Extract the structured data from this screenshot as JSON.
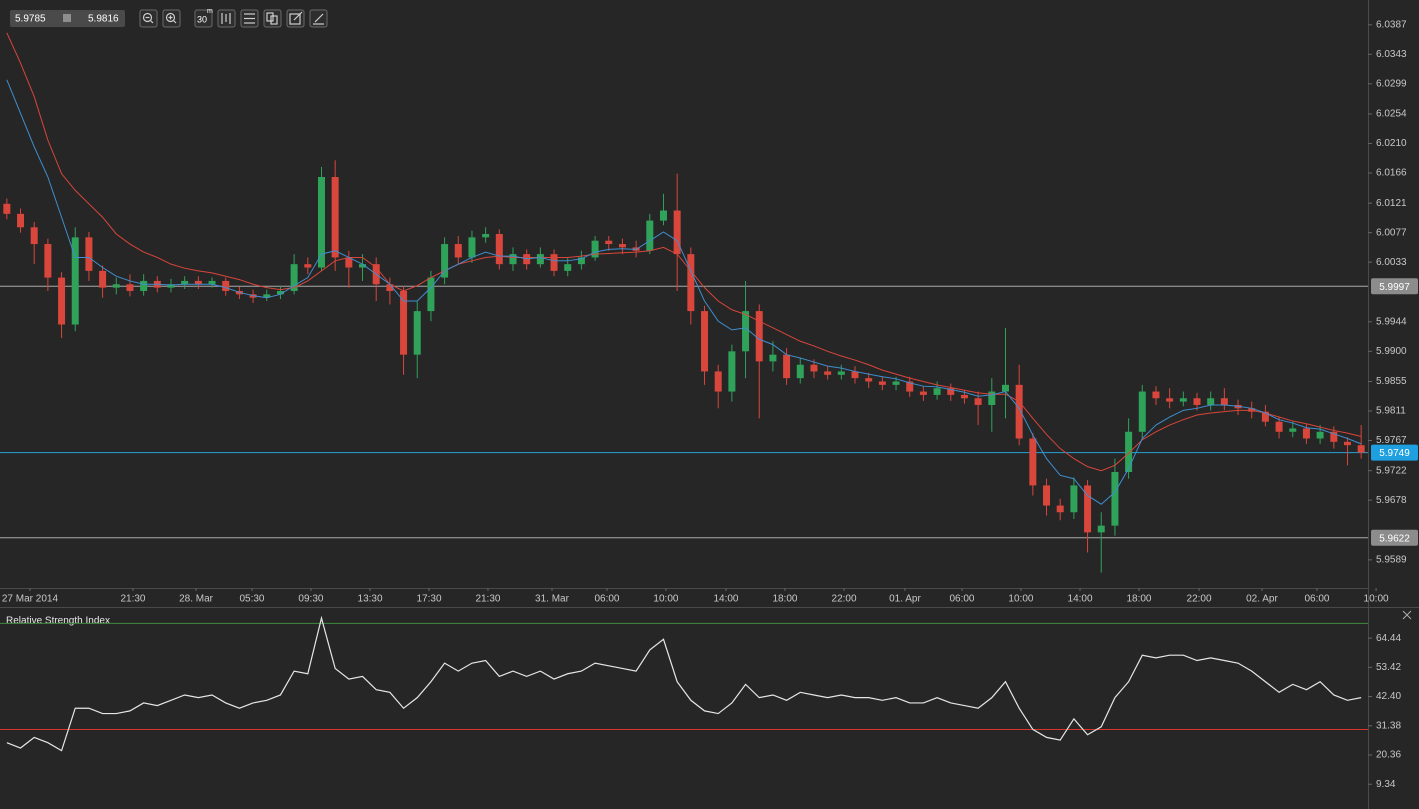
{
  "toolbar": {
    "bid": "5.9785",
    "ask": "5.9816",
    "timeframe": "30",
    "unit": "m"
  },
  "chart_data": [
    {
      "type": "candlestick",
      "up_color": "#2fa35a",
      "down_color": "#d9463b",
      "open": [
        6.012,
        6.0105,
        6.0085,
        6.006,
        6.001,
        5.994,
        6.007,
        6.002,
        5.9995,
        6.0,
        5.999,
        6.0005,
        5.9995,
        6.0,
        6.0005,
        6.0,
        6.0005,
        5.999,
        5.9985,
        5.998,
        5.9985,
        5.999,
        6.003,
        6.0025,
        6.016,
        6.004,
        6.0025,
        6.003,
        6.0,
        5.999,
        5.9895,
        5.996,
        6.001,
        6.006,
        6.004,
        6.007,
        6.0075,
        6.003,
        6.0045,
        6.003,
        6.0045,
        6.002,
        6.003,
        6.004,
        6.0065,
        6.006,
        6.0055,
        6.005,
        6.0095,
        6.011,
        6.0045,
        5.996,
        5.987,
        5.984,
        5.99,
        5.996,
        5.9885,
        5.9895,
        5.986,
        5.988,
        5.987,
        5.9865,
        5.987,
        5.986,
        5.9855,
        5.985,
        5.9855,
        5.984,
        5.9835,
        5.9845,
        5.9835,
        5.983,
        5.982,
        5.984,
        5.985,
        5.977,
        5.97,
        5.967,
        5.966,
        5.97,
        5.963,
        5.964,
        5.972,
        5.978,
        5.984,
        5.983,
        5.9825,
        5.983,
        5.982,
        5.983,
        5.982,
        5.9815,
        5.981,
        5.9795,
        5.978,
        5.9785,
        5.977,
        5.978,
        5.9765,
        5.976
      ],
      "high": [
        6.0128,
        6.0113,
        6.0093,
        6.0068,
        6.0018,
        6.0085,
        6.0078,
        6.0028,
        6.001,
        6.0015,
        6.0015,
        6.0012,
        6.0008,
        6.0012,
        6.0012,
        6.001,
        6.001,
        5.9996,
        5.9992,
        5.9992,
        5.9998,
        6.0045,
        6.004,
        6.0175,
        6.0185,
        6.005,
        6.0045,
        6.004,
        6.001,
        5.9998,
        5.9975,
        6.002,
        6.007,
        6.0072,
        6.008,
        6.0085,
        6.0082,
        6.0055,
        6.0052,
        6.0055,
        6.0052,
        6.004,
        6.005,
        6.0072,
        6.0072,
        6.0068,
        6.0065,
        6.0105,
        6.0135,
        6.0165,
        6.0055,
        5.9968,
        5.988,
        5.991,
        6.0005,
        5.997,
        5.9915,
        5.9905,
        5.989,
        5.9888,
        5.9878,
        5.988,
        5.9878,
        5.9868,
        5.9862,
        5.9862,
        5.9862,
        5.9848,
        5.9855,
        5.9852,
        5.9842,
        5.984,
        5.986,
        5.9935,
        5.988,
        5.9778,
        5.971,
        5.968,
        5.9712,
        5.9708,
        5.966,
        5.974,
        5.98,
        5.985,
        5.9848,
        5.9845,
        5.984,
        5.9838,
        5.984,
        5.9845,
        5.9828,
        5.9825,
        5.982,
        5.9802,
        5.9795,
        5.9792,
        5.979,
        5.9788,
        5.9772,
        5.979
      ],
      "low": [
        6.0097,
        6.0077,
        6.003,
        5.999,
        5.992,
        5.993,
        6.0005,
        5.998,
        5.9985,
        5.9982,
        5.9983,
        5.9988,
        5.9988,
        5.9993,
        5.9993,
        5.9995,
        5.9983,
        5.9978,
        5.9972,
        5.9975,
        5.9978,
        5.9985,
        6.0015,
        6.002,
        6.002,
        5.9995,
        6.0005,
        5.9975,
        5.997,
        5.9865,
        5.986,
        5.9945,
        6.0,
        6.003,
        6.0032,
        6.0062,
        6.0022,
        6.002,
        6.0022,
        6.0025,
        6.0012,
        6.0012,
        6.0022,
        6.0035,
        6.005,
        6.0045,
        6.004,
        6.0045,
        6.0088,
        5.999,
        5.994,
        5.985,
        5.9815,
        5.9825,
        5.986,
        5.98,
        5.987,
        5.985,
        5.9852,
        5.986,
        5.9858,
        5.9858,
        5.9852,
        5.9845,
        5.9842,
        5.9842,
        5.9832,
        5.9826,
        5.9828,
        5.9826,
        5.9822,
        5.979,
        5.978,
        5.98,
        5.976,
        5.9685,
        5.9655,
        5.9648,
        5.965,
        5.96,
        5.957,
        5.9625,
        5.971,
        5.977,
        5.982,
        5.9815,
        5.9818,
        5.9812,
        5.9812,
        5.9812,
        5.9805,
        5.98,
        5.9788,
        5.977,
        5.9772,
        5.9762,
        5.9762,
        5.9755,
        5.973,
        5.974
      ],
      "close": [
        6.0105,
        6.0085,
        6.006,
        6.001,
        5.994,
        6.007,
        6.002,
        5.9995,
        6.0,
        5.999,
        6.0005,
        5.9995,
        6.0,
        6.0005,
        6.0,
        6.0005,
        5.999,
        5.9985,
        5.998,
        5.9985,
        5.999,
        6.003,
        6.0025,
        6.016,
        6.004,
        6.0025,
        6.003,
        6.0,
        5.999,
        5.9895,
        5.996,
        6.001,
        6.006,
        6.004,
        6.007,
        6.0075,
        6.003,
        6.0045,
        6.003,
        6.0045,
        6.002,
        6.003,
        6.004,
        6.0065,
        6.006,
        6.0055,
        6.005,
        6.0095,
        6.011,
        6.0045,
        5.996,
        5.987,
        5.984,
        5.99,
        5.996,
        5.9885,
        5.9895,
        5.986,
        5.988,
        5.987,
        5.9865,
        5.987,
        5.986,
        5.9855,
        5.985,
        5.9855,
        5.984,
        5.9835,
        5.9845,
        5.9835,
        5.983,
        5.982,
        5.984,
        5.985,
        5.977,
        5.97,
        5.967,
        5.966,
        5.97,
        5.963,
        5.964,
        5.972,
        5.978,
        5.984,
        5.983,
        5.9825,
        5.983,
        5.982,
        5.983,
        5.982,
        5.9815,
        5.981,
        5.9795,
        5.978,
        5.9785,
        5.977,
        5.978,
        5.9765,
        5.976,
        5.9749
      ],
      "overlays": [
        {
          "color": "#d9463b",
          "values": [
            6.0375,
            6.033,
            6.028,
            6.0215,
            6.0165,
            6.014,
            6.012,
            6.01,
            6.0075,
            6.006,
            6.0048,
            6.004,
            6.003,
            6.0024,
            6.002,
            6.0017,
            6.0012,
            6.0007,
            6.0,
            5.9995,
            5.9992,
            5.9995,
            6.0005,
            6.002,
            6.0035,
            6.004,
            6.004,
            6.0025,
            6.0,
            5.999,
            5.9998,
            6.001,
            6.002,
            6.003,
            6.0035,
            6.004,
            6.0042,
            6.004,
            6.004,
            6.004,
            6.004,
            6.004,
            6.0042,
            6.0045,
            6.0046,
            6.0047,
            6.0048,
            6.005,
            6.0055,
            6.0045,
            6.002,
            5.9995,
            5.9975,
            5.9962,
            5.9955,
            5.9945,
            5.9935,
            5.9925,
            5.9915,
            5.9908,
            5.99,
            5.9893,
            5.9887,
            5.988,
            5.9872,
            5.9866,
            5.986,
            5.9855,
            5.985,
            5.9846,
            5.9842,
            5.9838,
            5.9836,
            5.9836,
            5.9825,
            5.98,
            5.9776,
            5.9755,
            5.974,
            5.9728,
            5.9722,
            5.973,
            5.9748,
            5.9768,
            5.978,
            5.979,
            5.9798,
            5.9805,
            5.9808,
            5.981,
            5.9812,
            5.9812,
            5.9808,
            5.9802,
            5.9796,
            5.9792,
            5.9787,
            5.9782,
            5.9778,
            5.9773
          ]
        },
        {
          "color": "#3f8fd0",
          "values": [
            6.0305,
            6.0255,
            6.0205,
            6.016,
            6.01,
            6.004,
            6.004,
            6.0025,
            6.0012,
            6.0005,
            6.0,
            6.0,
            5.9999,
            6.0,
            6.0,
            6.0,
            5.9995,
            5.9988,
            5.9983,
            5.998,
            5.9985,
            5.9998,
            6.001,
            6.0045,
            6.005,
            6.004,
            6.003,
            6.0015,
            6.0,
            5.9975,
            5.9975,
            5.9995,
            6.002,
            6.003,
            6.004,
            6.0048,
            6.0042,
            6.0042,
            6.0038,
            6.004,
            6.0035,
            6.0035,
            6.0038,
            6.0048,
            6.0052,
            6.0053,
            6.0052,
            6.0065,
            6.0078,
            6.0065,
            6.002,
            5.9975,
            5.9945,
            5.9932,
            5.9935,
            5.9918,
            5.991,
            5.9895,
            5.989,
            5.9884,
            5.9878,
            5.9875,
            5.987,
            5.9866,
            5.9862,
            5.9859,
            5.9853,
            5.9848,
            5.9847,
            5.9843,
            5.9839,
            5.9833,
            5.9835,
            5.984,
            5.9815,
            5.9775,
            5.974,
            5.9715,
            5.971,
            5.9685,
            5.9672,
            5.969,
            5.9725,
            5.977,
            5.979,
            5.9802,
            5.9812,
            5.9815,
            5.982,
            5.982,
            5.9818,
            5.9815,
            5.9808,
            5.9798,
            5.9793,
            5.9786,
            5.9784,
            5.9777,
            5.977,
            5.9762
          ]
        }
      ],
      "hlines": [
        {
          "value": 5.9997,
          "color": "#a9a9a9",
          "label_color": "#8c8c8c"
        },
        {
          "value": 5.9749,
          "color": "#2a9fd8",
          "label_color": "#1ea0e0"
        },
        {
          "value": 5.9622,
          "color": "#a9a9a9",
          "label_color": "#8c8c8c"
        }
      ],
      "xlim": [
        -0.5,
        99.5
      ],
      "xticks": [
        {
          "value": 1.69,
          "label": "27 Mar 2014"
        },
        {
          "value": 9.22,
          "label": "21:30"
        },
        {
          "value": 13.83,
          "label": "28. Mar"
        },
        {
          "value": 17.92,
          "label": "05:30"
        },
        {
          "value": 22.23,
          "label": "09:30"
        },
        {
          "value": 26.55,
          "label": "13:30"
        },
        {
          "value": 30.86,
          "label": "17:30"
        },
        {
          "value": 35.17,
          "label": "21:30"
        },
        {
          "value": 39.85,
          "label": "31. Mar"
        },
        {
          "value": 43.87,
          "label": "06:00"
        },
        {
          "value": 48.18,
          "label": "10:00"
        },
        {
          "value": 52.57,
          "label": "14:00"
        },
        {
          "value": 56.88,
          "label": "18:00"
        },
        {
          "value": 61.2,
          "label": "22:00"
        },
        {
          "value": 65.65,
          "label": "01. Apr"
        },
        {
          "value": 69.82,
          "label": "06:00"
        },
        {
          "value": 74.13,
          "label": "10:00"
        },
        {
          "value": 78.45,
          "label": "14:00"
        },
        {
          "value": 82.76,
          "label": "18:00"
        },
        {
          "value": 87.15,
          "label": "22:00"
        },
        {
          "value": 91.75,
          "label": "02. Apr"
        },
        {
          "value": 95.77,
          "label": "06:00"
        },
        {
          "value": 100.09,
          "label": "10:00"
        }
      ],
      "ylim": [
        5.9547,
        6.0424
      ],
      "yticks": [
        6.0387,
        6.0343,
        6.0299,
        6.0254,
        {
          "value": 6.021,
          "label": "6.0210"
        },
        6.0166,
        6.0121,
        6.0077,
        6.0033,
        5.9944,
        {
          "value": 5.99,
          "label": "5.9900"
        },
        5.9855,
        5.9811,
        5.9767,
        5.9722,
        5.9678,
        5.9589
      ]
    },
    {
      "type": "line",
      "title": "Relative Strength Index",
      "color": "#e6e6e6",
      "values": [
        25,
        23,
        27,
        25,
        22,
        38,
        38,
        36,
        36,
        37,
        40,
        39,
        41,
        43,
        42,
        43,
        40,
        38,
        40,
        41,
        43,
        52,
        51,
        72,
        53,
        49,
        50,
        45,
        44,
        38,
        42,
        48,
        55,
        52,
        55,
        56,
        50,
        52,
        50,
        52,
        49,
        51,
        52,
        55,
        54,
        53,
        52,
        60,
        64,
        48,
        41,
        37,
        36,
        40,
        47,
        42,
        43,
        41,
        44,
        43,
        42,
        43,
        42,
        42,
        41,
        42,
        40,
        40,
        42,
        40,
        39,
        38,
        42,
        48,
        38,
        30,
        27,
        26,
        34,
        28,
        31,
        42,
        48,
        58,
        57,
        58,
        58,
        56,
        57,
        56,
        55,
        52,
        48,
        44,
        47,
        45,
        48,
        43,
        41,
        42
      ],
      "levels": [
        {
          "value": 70,
          "color": "#3f8a3f"
        },
        {
          "value": 30,
          "color": "#d9342b"
        }
      ],
      "xlim": [
        -0.5,
        99.5
      ],
      "ylim": [
        0,
        75.8
      ],
      "yticks": [
        64.44,
        53.42,
        {
          "value": 42.4,
          "label": "42.40"
        },
        31.38,
        20.36,
        9.34
      ]
    }
  ]
}
